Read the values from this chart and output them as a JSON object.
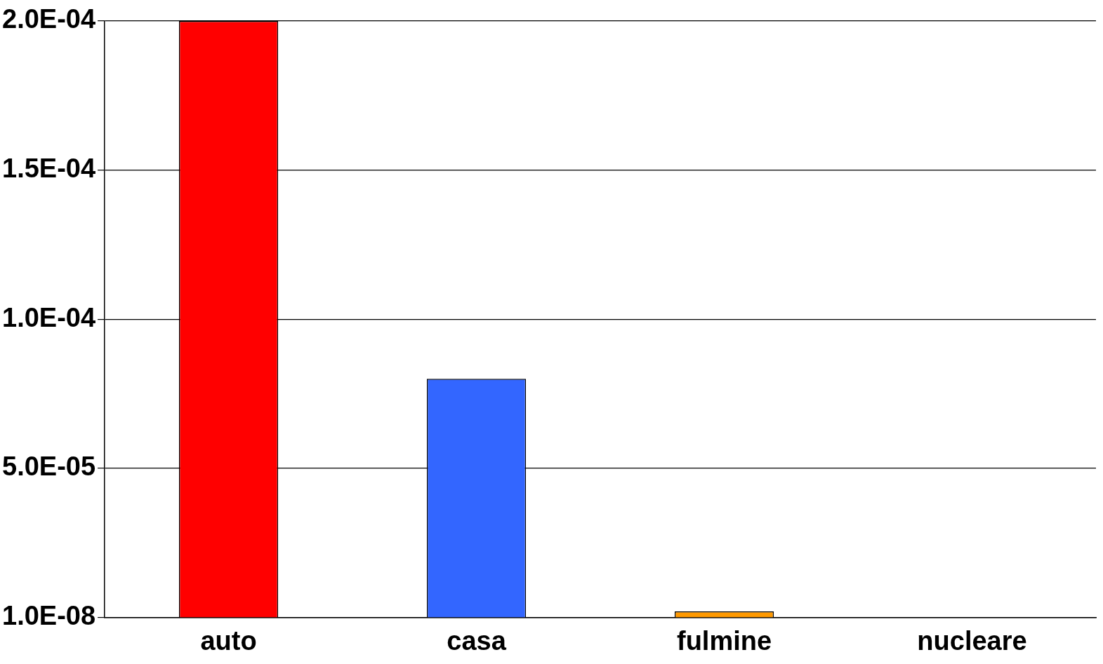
{
  "chart_data": {
    "type": "bar",
    "categories": [
      "auto",
      "casa",
      "fulmine",
      "nucleare"
    ],
    "values": [
      0.0002,
      8e-05,
      2e-06,
      1e-08
    ],
    "colors": [
      "#ff0000",
      "#3366ff",
      "#ff9900",
      "#c0c000"
    ],
    "ylim": [
      1e-08,
      0.0002
    ],
    "yticks": [
      {
        "value": 1e-08,
        "label": "1.0E-08"
      },
      {
        "value": 5e-05,
        "label": "5.0E-05"
      },
      {
        "value": 0.0001,
        "label": "1.0E-04"
      },
      {
        "value": 0.00015,
        "label": "1.5E-04"
      },
      {
        "value": 0.0002,
        "label": "2.0E-04"
      }
    ],
    "grid": "y"
  }
}
